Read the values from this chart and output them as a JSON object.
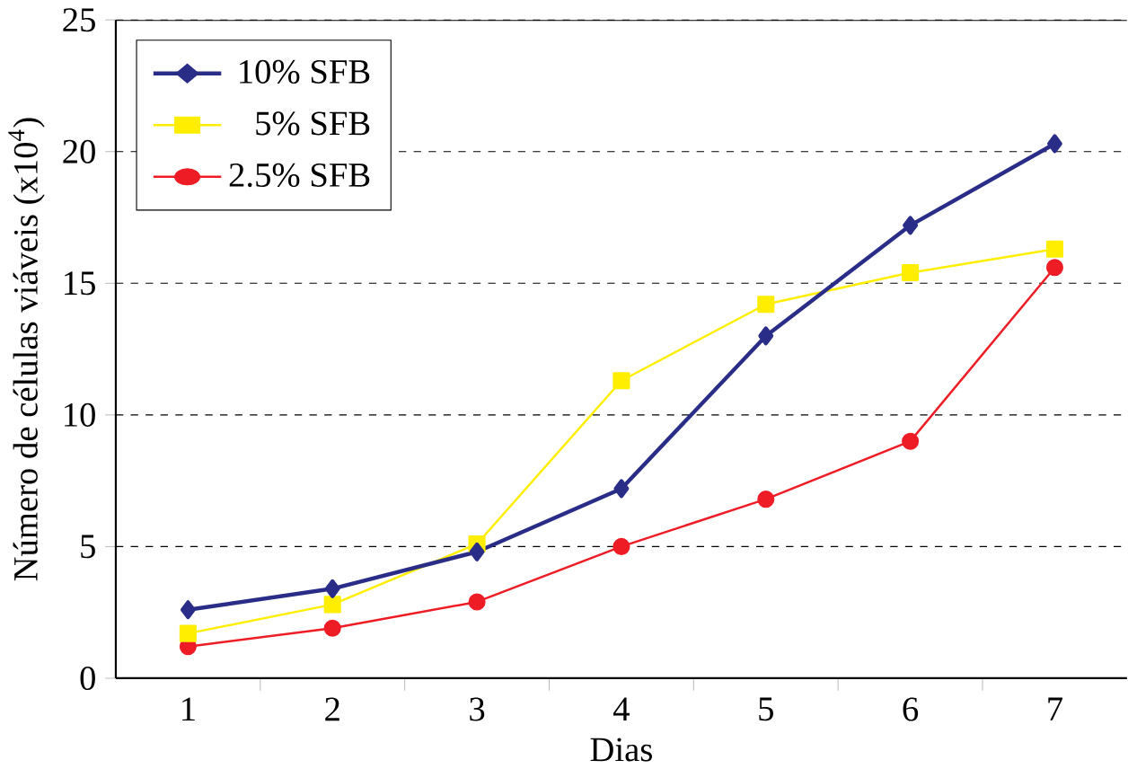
{
  "chart_data": {
    "type": "line",
    "xlabel": "Dias",
    "ylabel": "Número de células viáveis (x10$^{4}$)",
    "categories": [
      "1",
      "2",
      "3",
      "4",
      "5",
      "6",
      "7"
    ],
    "ylim": [
      0,
      25
    ],
    "yticks": [
      0,
      5,
      10,
      15,
      20,
      25
    ],
    "grid": "y",
    "legend": "top left",
    "series": [
      {
        "name": "10% SFB",
        "color": "#2a2d87",
        "marker": "diamond",
        "values": [
          2.6,
          3.4,
          4.8,
          7.2,
          13.0,
          17.2,
          20.3
        ]
      },
      {
        "name": "5% SFB",
        "color": "#ffee00",
        "marker": "square",
        "values": [
          1.7,
          2.8,
          5.1,
          11.3,
          14.2,
          15.4,
          16.3
        ]
      },
      {
        "name": "2.5% SFB",
        "color": "#ee1c25",
        "marker": "circle",
        "values": [
          1.2,
          1.9,
          2.9,
          5.0,
          6.8,
          9.0,
          15.6
        ]
      }
    ]
  }
}
